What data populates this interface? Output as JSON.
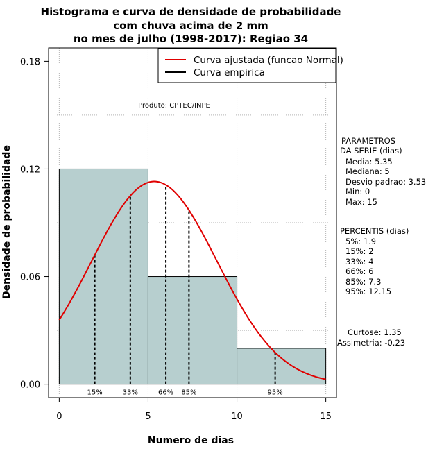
{
  "chart_data": {
    "type": "bar",
    "title_lines": [
      "Histograma e curva de densidade de probabilidade",
      "com chuva acima de 2 mm",
      "no mes de julho (1998-2017): Regiao 34"
    ],
    "xlabel": "Numero de dias",
    "ylabel": "Densidade de probabilidade",
    "xlim": [
      -0.6,
      15.6
    ],
    "ylim": [
      -0.0075,
      0.1875
    ],
    "xticks": [
      0,
      5,
      10,
      15
    ],
    "xtick_labels": [
      "0",
      "5",
      "10",
      "15"
    ],
    "yticks": [
      0.0,
      0.06,
      0.12,
      0.18
    ],
    "ytick_labels": [
      "0.00",
      "0.06",
      "0.12",
      "0.18"
    ],
    "grid": true,
    "grid_x": [
      0,
      5,
      10,
      15
    ],
    "grid_y": [
      0.03,
      0.09,
      0.15
    ],
    "bins": [
      {
        "x0": 0,
        "x1": 5,
        "density": 0.12
      },
      {
        "x0": 5,
        "x1": 10,
        "density": 0.06
      },
      {
        "x0": 10,
        "x1": 15,
        "density": 0.02
      }
    ],
    "bar_color": "#b7cfcf",
    "normal_fit": {
      "mean": 5.35,
      "sd": 3.53,
      "color": "#e00000"
    },
    "percentile_lines": [
      {
        "label": "15%",
        "x": 2
      },
      {
        "label": "33%",
        "x": 4
      },
      {
        "label": "66%",
        "x": 6
      },
      {
        "label": "85%",
        "x": 7.3
      },
      {
        "label": "95%",
        "x": 12.15
      }
    ],
    "legend": {
      "position": "top-right",
      "entries": [
        {
          "label": "Curva ajustada (funcao Normal)",
          "color": "#e00000"
        },
        {
          "label": "Curva empirica",
          "color": "#000000"
        }
      ]
    },
    "annotation": "Produto: CPTEC/INPE"
  },
  "side_panel": {
    "parametros_title": [
      "PARAMETROS",
      "DA SERIE (dias)"
    ],
    "parametros": [
      "Media: 5.35",
      "Mediana: 5",
      "Desvio padrao: 3.53",
      "Min: 0",
      "Max: 15"
    ],
    "percentis_title": "PERCENTIS (dias)",
    "percentis": [
      "5%: 1.9",
      "15%: 2",
      "33%: 4",
      "66%: 6",
      "85%: 7.3",
      "95%: 12.15"
    ],
    "curtose": "Curtose: 1.35",
    "assimetria": "Assimetria: -0.23"
  }
}
